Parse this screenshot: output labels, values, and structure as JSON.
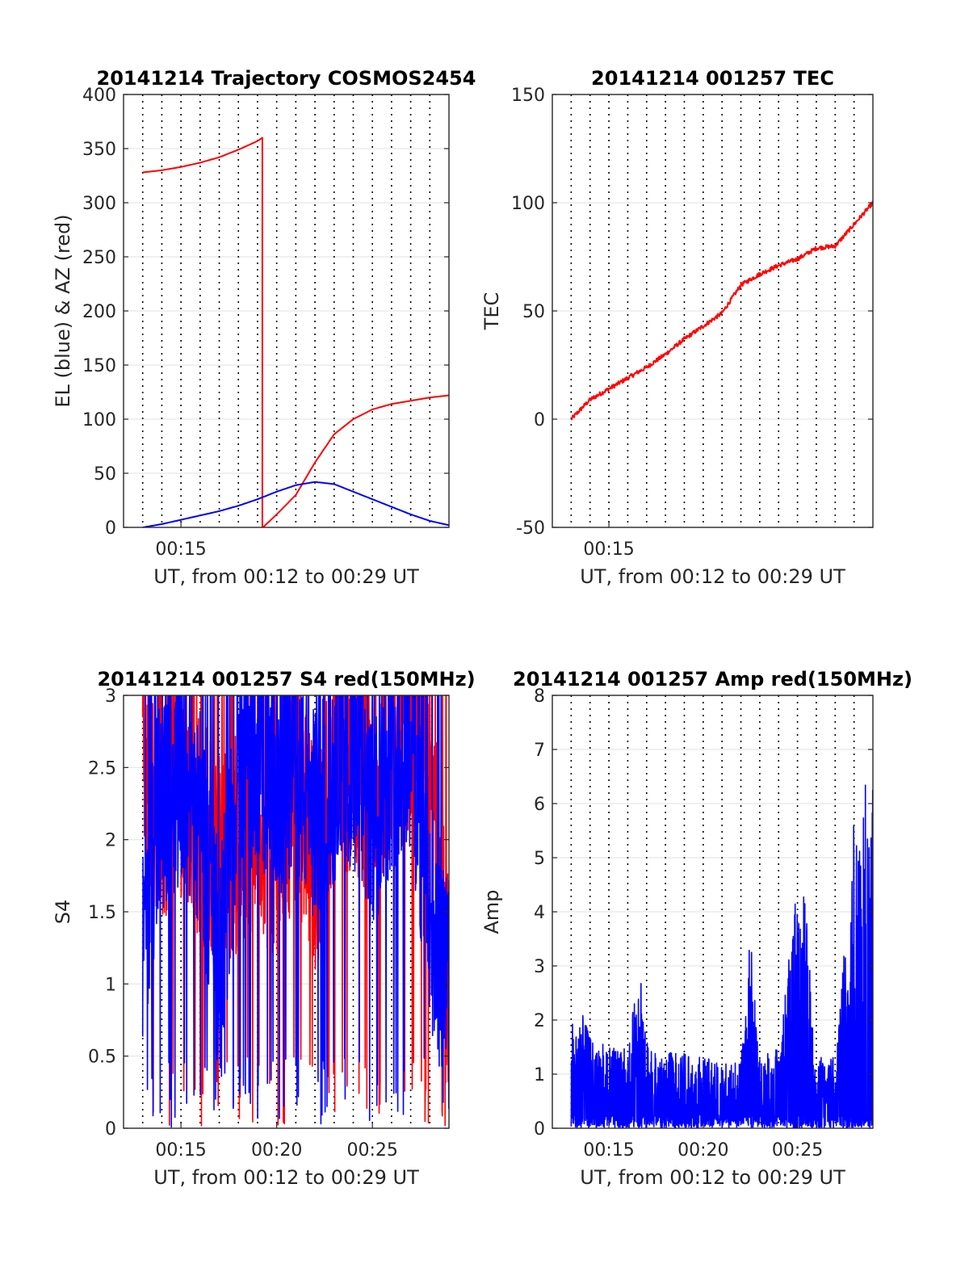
{
  "colors": {
    "az": "#ff0000",
    "el": "#0000ff",
    "grid": "#e6e6e6",
    "axis": "#262626"
  },
  "chart_data": [
    {
      "id": "p1",
      "type": "line",
      "title": "20141214 Trajectory COSMOS2454",
      "xlabel": "UT, from 00:12 to 00:29 UT",
      "ylabel": "EL (blue) & AZ (red)",
      "xlim": [
        "00:12",
        "00:29"
      ],
      "ylim": [
        0,
        400
      ],
      "yticks": [
        0,
        50,
        100,
        150,
        200,
        250,
        300,
        350,
        400
      ],
      "ytick_labels": [
        "0",
        "50",
        "100",
        "150",
        "200",
        "250",
        "300",
        "350",
        "400"
      ],
      "xtick_labels": [
        {
          "t": "00:15",
          "label": "00:15"
        }
      ],
      "grid_major_y": true,
      "dotted_vlines_minutes": [
        "00:13",
        "00:14",
        "00:15",
        "00:16",
        "00:17",
        "00:18",
        "00:19",
        "00:20",
        "00:21",
        "00:22",
        "00:23",
        "00:24",
        "00:25",
        "00:26",
        "00:27",
        "00:28",
        "00:29"
      ],
      "series": [
        {
          "color": "#ff0000",
          "x": [
            "00:13",
            "00:14",
            "00:15",
            "00:16",
            "00:17",
            "00:18",
            "00:19",
            "00:19:15",
            "00:19:17",
            "00:20",
            "00:21",
            "00:22",
            "00:23",
            "00:24",
            "00:25",
            "00:26",
            "00:27",
            "00:28",
            "00:29"
          ],
          "y": [
            328,
            330,
            333,
            337,
            342,
            349,
            357,
            360,
            0,
            12,
            30,
            60,
            86,
            100,
            109,
            114,
            117,
            120,
            122
          ]
        },
        {
          "color": "#0000ff",
          "x": [
            "00:13",
            "00:14",
            "00:15",
            "00:16",
            "00:17",
            "00:18",
            "00:19",
            "00:20",
            "00:21",
            "00:22",
            "00:23",
            "00:24",
            "00:25",
            "00:26",
            "00:27",
            "00:28",
            "00:29"
          ],
          "y": [
            0,
            3,
            7,
            11,
            15,
            20,
            26,
            33,
            39,
            42,
            40,
            33,
            26,
            19,
            12,
            6,
            2
          ]
        }
      ]
    },
    {
      "id": "p2",
      "type": "line",
      "title": "20141214 001257 TEC",
      "xlabel": "UT, from 00:12 to 00:29 UT",
      "ylabel": "TEC",
      "xlim": [
        "00:12",
        "00:29"
      ],
      "ylim": [
        -50,
        150
      ],
      "yticks": [
        -50,
        0,
        50,
        100,
        150
      ],
      "ytick_labels": [
        "-50",
        "0",
        "50",
        "100",
        "150"
      ],
      "xtick_labels": [
        {
          "t": "00:15",
          "label": "00:15"
        }
      ],
      "grid_major_y": true,
      "dotted_vlines_minutes": [
        "00:13",
        "00:14",
        "00:15",
        "00:16",
        "00:17",
        "00:18",
        "00:19",
        "00:20",
        "00:21",
        "00:22",
        "00:23",
        "00:24",
        "00:25",
        "00:26",
        "00:27",
        "00:28",
        "00:29"
      ],
      "series": [
        {
          "color": "#ff0000",
          "x": [
            "00:13",
            "00:14",
            "00:15",
            "00:16",
            "00:17",
            "00:18",
            "00:19",
            "00:20",
            "00:21",
            "00:22",
            "00:23",
            "00:24",
            "00:25",
            "00:26",
            "00:27",
            "00:28",
            "00:29"
          ],
          "y": [
            0,
            9,
            14,
            19,
            24,
            30,
            37,
            43,
            49,
            62,
            67,
            71,
            74,
            79,
            80,
            90,
            100
          ]
        }
      ]
    },
    {
      "id": "p3",
      "type": "line",
      "title": "20141214 001257 S4 red(150MHz)",
      "xlabel": "UT, from 00:12 to 00:29 UT",
      "ylabel": "S4",
      "xlim": [
        "00:12",
        "00:29"
      ],
      "ylim": [
        0,
        3
      ],
      "yticks": [
        0,
        0.5,
        1,
        1.5,
        2,
        2.5,
        3
      ],
      "ytick_labels": [
        "0",
        "0.5",
        "1",
        "1.5",
        "2",
        "2.5",
        "3"
      ],
      "xtick_labels": [
        {
          "t": "00:15",
          "label": "00:15"
        },
        {
          "t": "00:20",
          "label": "00:20"
        },
        {
          "t": "00:25",
          "label": "00:25"
        }
      ],
      "grid_major_y": true,
      "dotted_vlines_minutes": [
        "00:13",
        "00:14",
        "00:15",
        "00:16",
        "00:17",
        "00:18",
        "00:19",
        "00:20",
        "00:21",
        "00:22",
        "00:23",
        "00:24",
        "00:25",
        "00:26",
        "00:27",
        "00:28",
        "00:29"
      ],
      "series": [
        {
          "color": "#ff0000",
          "x": [
            "00:13",
            "00:14",
            "00:15",
            "00:16",
            "00:17",
            "00:18",
            "00:19",
            "00:20",
            "00:21",
            "00:22",
            "00:23",
            "00:24",
            "00:25",
            "00:26",
            "00:27",
            "00:28",
            "00:29"
          ],
          "y": [
            2.6,
            2.2,
            2.4,
            2.1,
            1.8,
            2.0,
            2.2,
            1.9,
            2.4,
            1.8,
            2.5,
            2.6,
            2.3,
            2.7,
            2.8,
            2.5,
            1.0
          ]
        },
        {
          "color": "#0000ff",
          "x": [
            "00:13",
            "00:14",
            "00:15",
            "00:16",
            "00:17",
            "00:18",
            "00:19",
            "00:20",
            "00:21",
            "00:22",
            "00:23",
            "00:24",
            "00:25",
            "00:26",
            "00:27",
            "00:28",
            "00:29"
          ],
          "y": [
            1.4,
            2.3,
            2.5,
            2.2,
            1.1,
            2.4,
            2.6,
            2.4,
            2.5,
            2.2,
            2.5,
            2.6,
            2.1,
            2.6,
            2.7,
            1.5,
            0.9
          ]
        }
      ]
    },
    {
      "id": "p4",
      "type": "line",
      "title": "20141214 001257 Amp red(150MHz)",
      "xlabel": "UT, from 00:12 to 00:29 UT",
      "ylabel": "Amp",
      "xlim": [
        "00:12",
        "00:29"
      ],
      "ylim": [
        0,
        8
      ],
      "yticks": [
        0,
        1,
        2,
        3,
        4,
        5,
        6,
        7,
        8
      ],
      "ytick_labels": [
        "0",
        "1",
        "2",
        "3",
        "4",
        "5",
        "6",
        "7",
        "8"
      ],
      "xtick_labels": [
        {
          "t": "00:15",
          "label": "00:15"
        },
        {
          "t": "00:20",
          "label": "00:20"
        },
        {
          "t": "00:25",
          "label": "00:25"
        }
      ],
      "grid_major_y": true,
      "dotted_vlines_minutes": [
        "00:13",
        "00:14",
        "00:15",
        "00:16",
        "00:17",
        "00:18",
        "00:19",
        "00:20",
        "00:21",
        "00:22",
        "00:23",
        "00:24",
        "00:25",
        "00:26",
        "00:27",
        "00:28",
        "00:29"
      ],
      "series": [
        {
          "color": "#0000ff",
          "x": [
            "00:13",
            "00:13:30",
            "00:14",
            "00:15",
            "00:16",
            "00:16:40",
            "00:17",
            "00:18",
            "00:19",
            "00:20",
            "00:21",
            "00:22",
            "00:22:30",
            "00:23",
            "00:24",
            "00:25",
            "00:25:10",
            "00:26",
            "00:27",
            "00:28",
            "00:28:20",
            "00:29"
          ],
          "y": [
            2.0,
            2.2,
            1.7,
            1.5,
            1.5,
            3.1,
            1.6,
            1.4,
            1.4,
            1.3,
            1.3,
            1.2,
            3.6,
            1.3,
            1.5,
            4.6,
            5.4,
            1.4,
            1.3,
            6.0,
            5.9,
            7.1
          ]
        }
      ]
    }
  ]
}
